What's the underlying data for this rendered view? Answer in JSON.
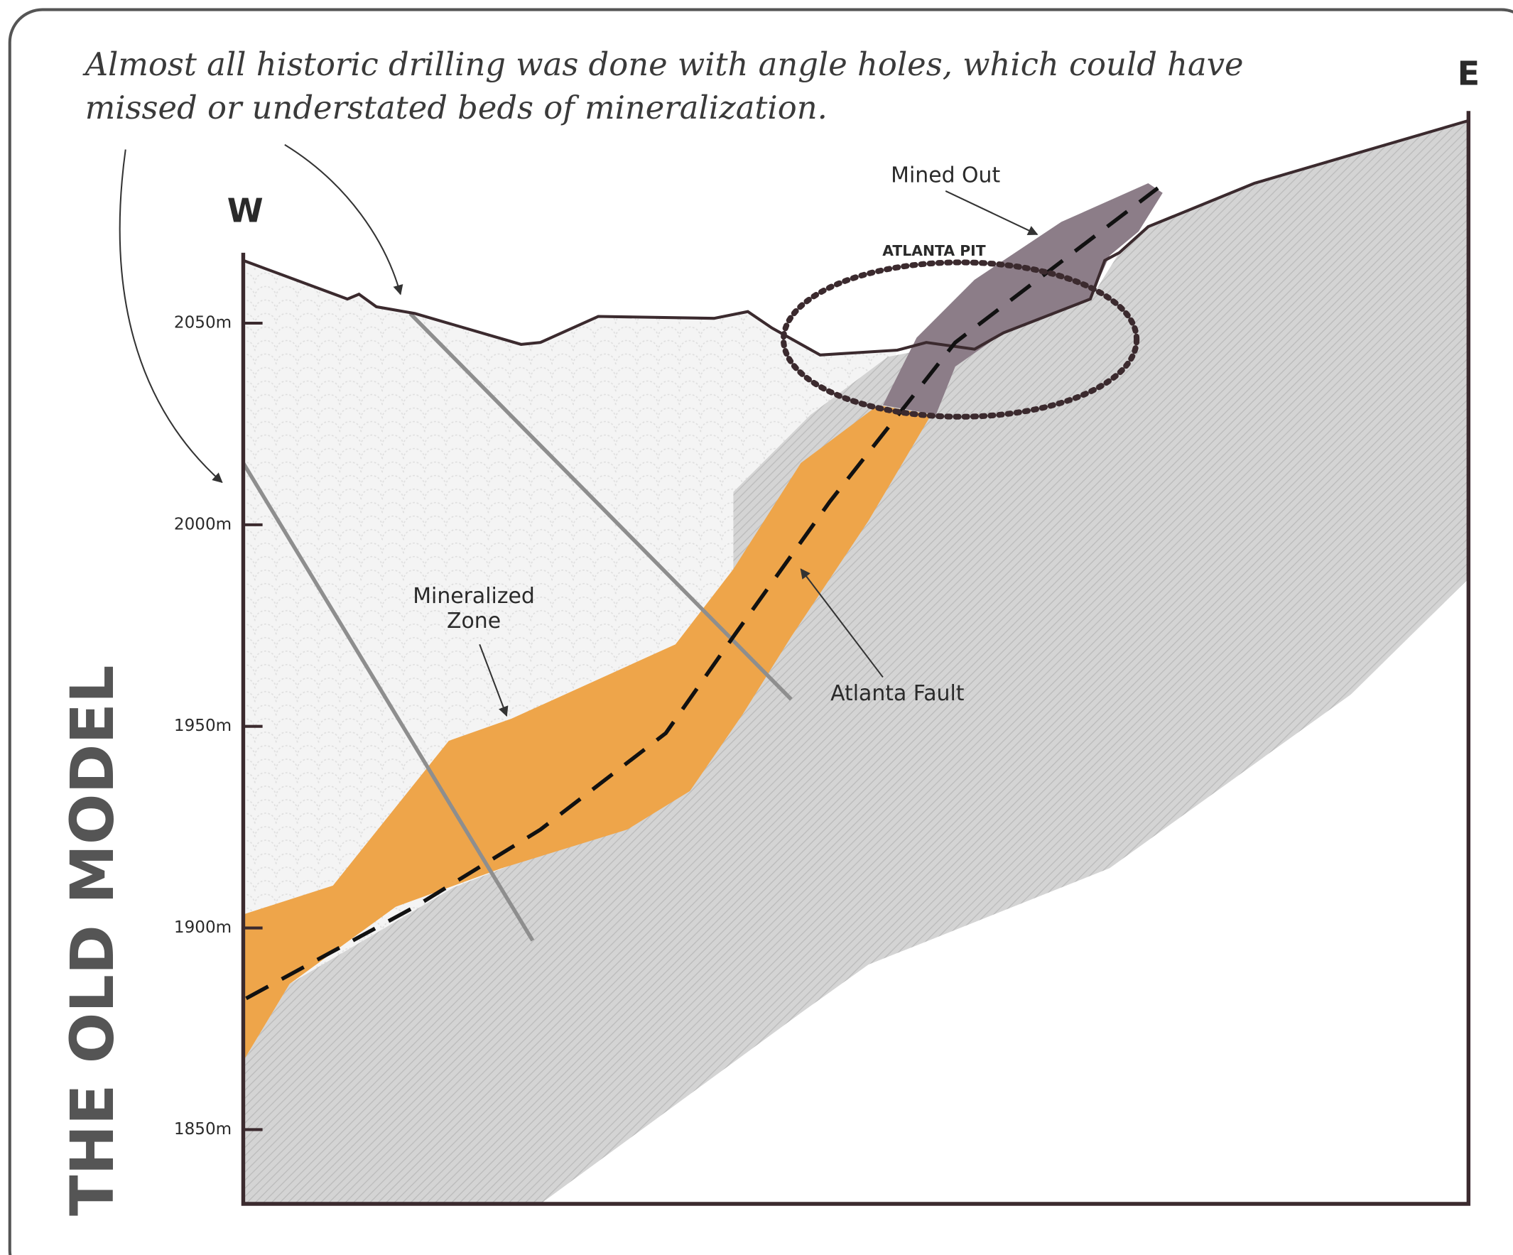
{
  "annotation": {
    "lines": [
      "Almost all historic drilling was done with angle holes, which could have",
      "missed or understated beds of mineralization."
    ]
  },
  "compass": {
    "west": "W",
    "east": "E"
  },
  "elevation_labels": [
    "2050m",
    "2000m",
    "1950m",
    "1900m",
    "1850m"
  ],
  "labels": {
    "mined_out": "Mined Out",
    "pit": "ATLANTA PIT",
    "mineralized_zone": [
      "Mineralized",
      "Zone"
    ],
    "fault": "Atlanta Fault"
  },
  "side_title": "THE OLD MODEL"
}
